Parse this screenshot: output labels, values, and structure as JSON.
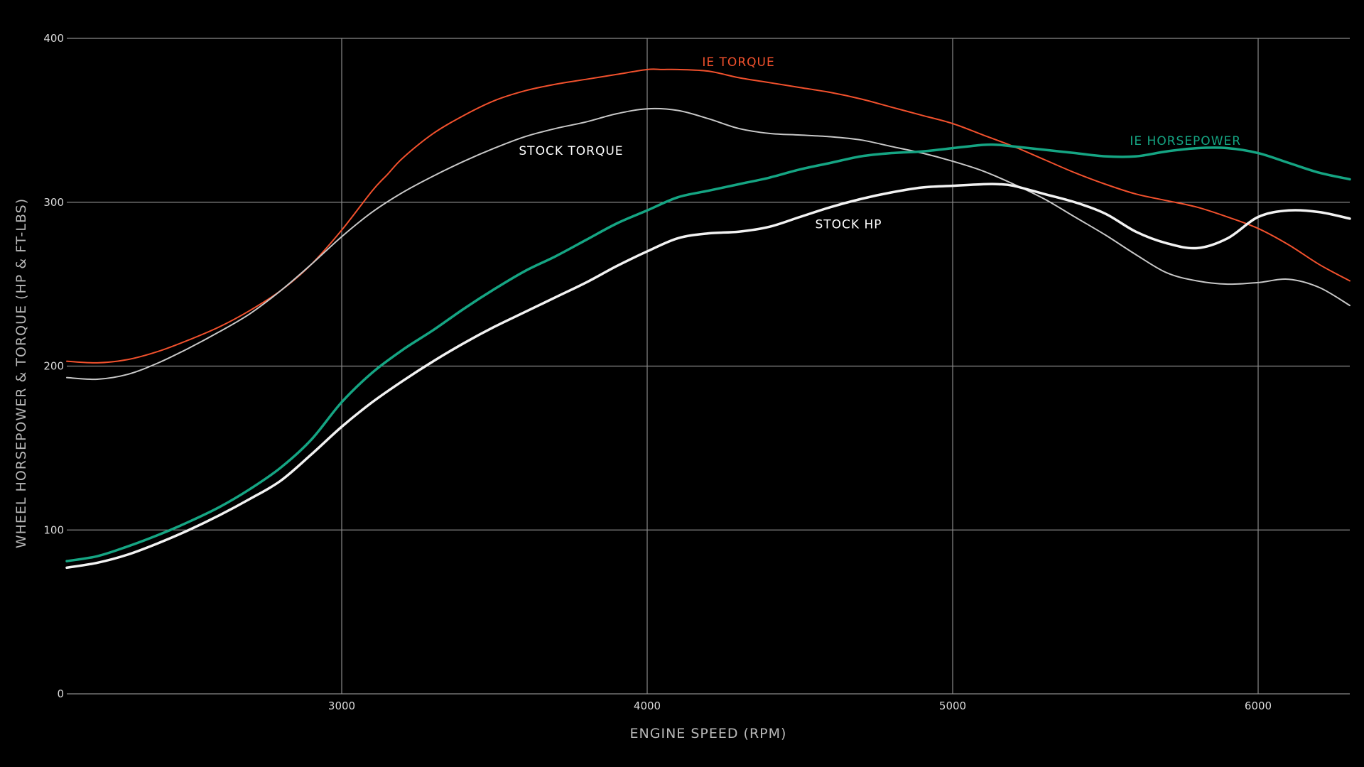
{
  "chart_data": {
    "type": "line",
    "title": "",
    "xlabel": "ENGINE SPEED (RPM)",
    "ylabel": "WHEEL HORSEPOWER & TORQUE (HP & FT-LBS)",
    "xlim": [
      2100,
      6300
    ],
    "ylim": [
      0,
      400
    ],
    "xticks": [
      3000,
      4000,
      5000,
      6000
    ],
    "yticks": [
      0,
      100,
      200,
      300,
      400
    ],
    "grid": true,
    "background": "#000000",
    "grid_color": "#8a8a8a",
    "series": [
      {
        "name": "IE TORQUE",
        "color": "#f2512d",
        "width": 2,
        "x": [
          2100,
          2200,
          2300,
          2400,
          2500,
          2600,
          2700,
          2800,
          2900,
          3000,
          3100,
          3150,
          3200,
          3300,
          3400,
          3500,
          3600,
          3700,
          3800,
          3900,
          4000,
          4050,
          4100,
          4200,
          4300,
          4400,
          4500,
          4600,
          4700,
          4800,
          4900,
          5000,
          5100,
          5200,
          5300,
          5400,
          5500,
          5600,
          5700,
          5800,
          5900,
          6000,
          6100,
          6200,
          6300
        ],
        "y": [
          203,
          202,
          204,
          209,
          216,
          224,
          234,
          246,
          262,
          283,
          307,
          317,
          327,
          342,
          353,
          362,
          368,
          372,
          375,
          378,
          381,
          381,
          381,
          380,
          376,
          373,
          370,
          367,
          363,
          358,
          353,
          348,
          341,
          334,
          326,
          318,
          311,
          305,
          301,
          297,
          291,
          284,
          274,
          262,
          252
        ]
      },
      {
        "name": "STOCK TORQUE",
        "color": "#c8c8c8",
        "width": 2,
        "x": [
          2100,
          2200,
          2300,
          2400,
          2500,
          2600,
          2700,
          2800,
          2900,
          3000,
          3100,
          3200,
          3300,
          3400,
          3500,
          3600,
          3700,
          3800,
          3900,
          4000,
          4100,
          4200,
          4300,
          4400,
          4500,
          4600,
          4700,
          4800,
          4900,
          5000,
          5100,
          5200,
          5300,
          5400,
          5500,
          5600,
          5700,
          5800,
          5900,
          6000,
          6100,
          6200,
          6300
        ],
        "y": [
          193,
          192,
          195,
          202,
          211,
          221,
          232,
          246,
          262,
          279,
          294,
          306,
          316,
          325,
          333,
          340,
          345,
          349,
          354,
          357,
          356,
          351,
          345,
          342,
          341,
          340,
          338,
          334,
          330,
          325,
          319,
          311,
          302,
          291,
          280,
          268,
          257,
          252,
          250,
          251,
          253,
          248,
          237
        ]
      },
      {
        "name": "IE HORSEPOWER",
        "color": "#15a583",
        "width": 3.5,
        "x": [
          2100,
          2200,
          2300,
          2400,
          2500,
          2600,
          2700,
          2800,
          2900,
          3000,
          3100,
          3200,
          3300,
          3400,
          3500,
          3600,
          3700,
          3800,
          3900,
          4000,
          4100,
          4200,
          4300,
          4400,
          4500,
          4600,
          4700,
          4800,
          4900,
          5000,
          5100,
          5150,
          5200,
          5300,
          5400,
          5500,
          5600,
          5700,
          5800,
          5900,
          6000,
          6100,
          6200,
          6300
        ],
        "y": [
          81,
          84,
          90,
          97,
          105,
          114,
          125,
          138,
          155,
          178,
          196,
          210,
          222,
          235,
          247,
          258,
          267,
          277,
          287,
          295,
          303,
          307,
          311,
          315,
          320,
          324,
          328,
          330,
          331,
          333,
          335,
          335,
          334,
          332,
          330,
          328,
          328,
          331,
          333,
          333,
          330,
          324,
          318,
          314
        ]
      },
      {
        "name": "STOCK HP",
        "color": "#f2f2f2",
        "width": 3.5,
        "x": [
          2100,
          2200,
          2300,
          2400,
          2500,
          2600,
          2700,
          2800,
          2900,
          3000,
          3100,
          3200,
          3300,
          3400,
          3500,
          3600,
          3700,
          3800,
          3900,
          4000,
          4100,
          4200,
          4300,
          4400,
          4500,
          4600,
          4700,
          4800,
          4900,
          5000,
          5100,
          5150,
          5200,
          5300,
          5400,
          5500,
          5600,
          5700,
          5800,
          5900,
          6000,
          6100,
          6200,
          6300
        ],
        "y": [
          77,
          80,
          85,
          92,
          100,
          109,
          119,
          130,
          146,
          163,
          178,
          191,
          203,
          214,
          224,
          233,
          242,
          251,
          261,
          270,
          278,
          281,
          282,
          285,
          291,
          297,
          302,
          306,
          309,
          310,
          311,
          311,
          310,
          305,
          300,
          293,
          282,
          275,
          272,
          278,
          291,
          295,
          294,
          290
        ]
      }
    ],
    "annotations": [
      {
        "text": "IE TORQUE",
        "series": "IE TORQUE",
        "x": 4180,
        "y": 383,
        "color": "#f2512d"
      },
      {
        "text": "STOCK TORQUE",
        "series": "STOCK TORQUE",
        "x": 3580,
        "y": 329,
        "color": "#ffffff"
      },
      {
        "text": "IE HORSEPOWER",
        "series": "IE HORSEPOWER",
        "x": 5580,
        "y": 335,
        "color": "#15a583"
      },
      {
        "text": "STOCK HP",
        "series": "STOCK HP",
        "x": 4550,
        "y": 284,
        "color": "#ffffff"
      }
    ]
  }
}
